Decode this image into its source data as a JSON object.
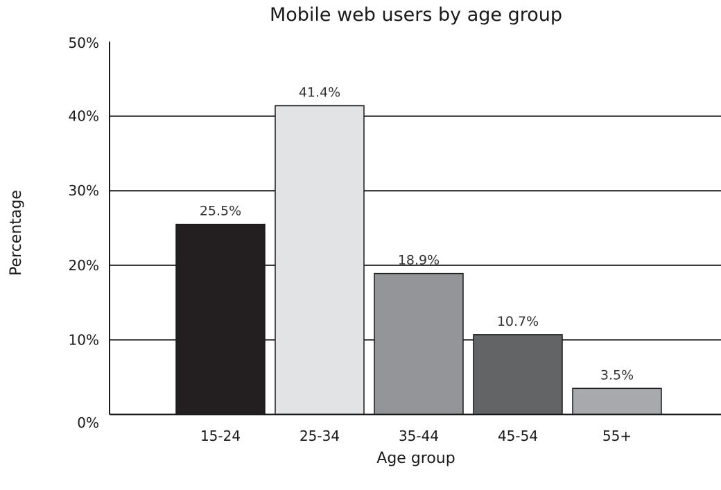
{
  "chart_data": {
    "type": "bar",
    "title": "Mobile web users by age group",
    "xlabel": "Age group",
    "ylabel": "Percentage",
    "categories": [
      "15-24",
      "25-34",
      "35-44",
      "45-54",
      "55+"
    ],
    "values": [
      25.5,
      41.4,
      18.9,
      10.7,
      3.5
    ],
    "data_labels": [
      "25.5%",
      "41.4%",
      "18.9%",
      "10.7%",
      "3.5%"
    ],
    "bar_colors": [
      "#231f20",
      "#e2e3e4",
      "#939598",
      "#636466",
      "#a7a9ac"
    ],
    "ylim": [
      0,
      50
    ],
    "yticks": [
      0,
      10,
      20,
      30,
      40,
      50
    ],
    "ytick_labels": [
      "0%",
      "10%",
      "20%",
      "30%",
      "40%",
      "50%"
    ],
    "grid": true,
    "legend": "none"
  }
}
